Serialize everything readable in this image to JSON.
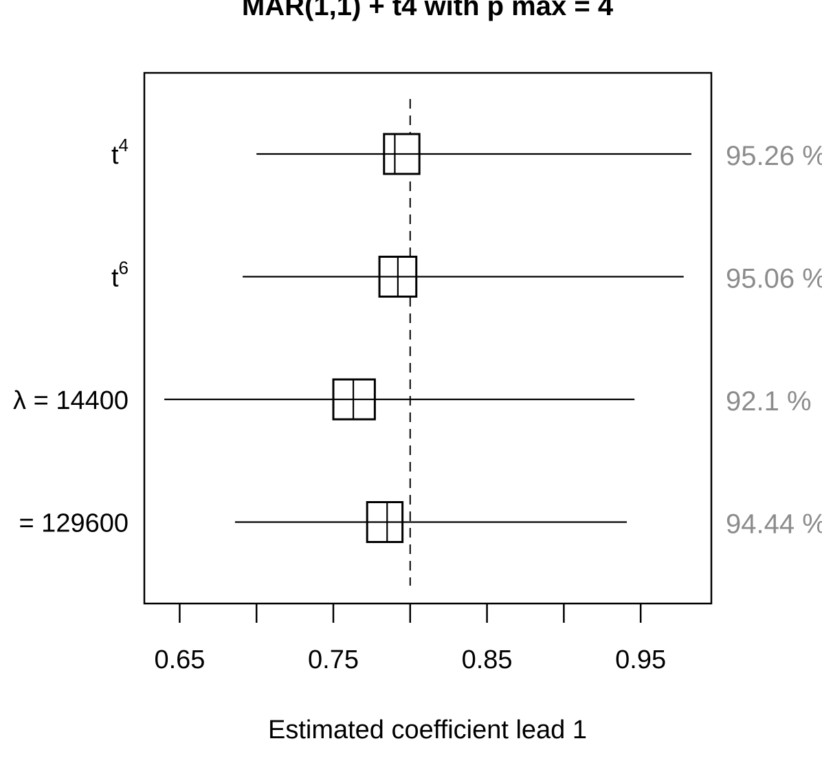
{
  "chart_data": {
    "type": "forest",
    "title": "MAR(1,1) + t4 with p max = 4",
    "xlabel": "Estimated coefficient lead 1",
    "xlim": [
      0.627,
      0.996
    ],
    "x_ticks": [
      0.65,
      0.7,
      0.75,
      0.8,
      0.85,
      0.9,
      0.95
    ],
    "x_tick_labels": [
      "0.65",
      "",
      "0.75",
      "",
      "0.85",
      "",
      "0.95"
    ],
    "reference_line": {
      "value": 0.8,
      "style": "dashed"
    },
    "rows": [
      {
        "label_base": "t",
        "label_sup": "4",
        "lower": 0.7,
        "upper": 0.983,
        "median": 0.79,
        "box_low": 0.783,
        "box_high": 0.806,
        "coverage": "95.26 %"
      },
      {
        "label_base": "t",
        "label_sup": "6",
        "lower": 0.691,
        "upper": 0.978,
        "median": 0.792,
        "box_low": 0.78,
        "box_high": 0.804,
        "coverage": "95.06 %"
      },
      {
        "label_base": "λ = 14400",
        "label_sup": "",
        "lower": 0.64,
        "upper": 0.946,
        "median": 0.763,
        "box_low": 0.75,
        "box_high": 0.777,
        "coverage": "92.1 %"
      },
      {
        "label_base": "= 129600",
        "label_sup": "",
        "lower": 0.686,
        "upper": 0.941,
        "median": 0.785,
        "box_low": 0.772,
        "box_high": 0.795,
        "coverage": "94.44 %"
      }
    ]
  }
}
